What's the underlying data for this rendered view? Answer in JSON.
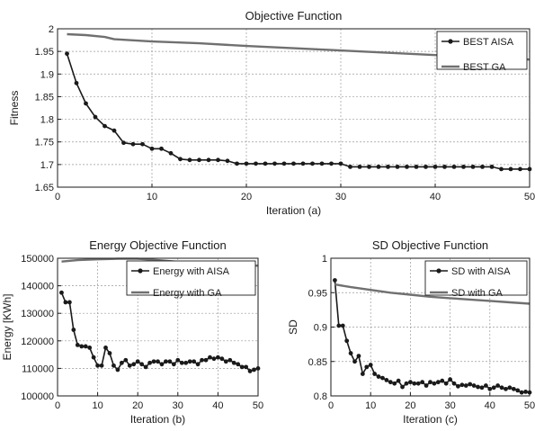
{
  "chart_data": [
    {
      "type": "line",
      "title": "Objective Function",
      "xlabel": "Iteration  (a)",
      "ylabel": "Fitness",
      "xlim": [
        0,
        50
      ],
      "ylim": [
        1.65,
        2.0
      ],
      "xticks": [
        "0",
        "10",
        "20",
        "30",
        "40",
        "50"
      ],
      "yticks": [
        "1.65",
        "1.7",
        "1.75",
        "1.8",
        "1.85",
        "1.9",
        "1.95",
        "2"
      ],
      "grid": true,
      "legend_position": "top-right",
      "series": [
        {
          "name": "BEST AISA",
          "color": "#1a1a1a",
          "markers": true,
          "x": [
            1,
            2,
            3,
            4,
            5,
            6,
            7,
            8,
            9,
            10,
            11,
            12,
            13,
            14,
            15,
            16,
            17,
            18,
            19,
            20,
            21,
            22,
            23,
            24,
            25,
            26,
            27,
            28,
            29,
            30,
            31,
            32,
            33,
            34,
            35,
            36,
            37,
            38,
            39,
            40,
            41,
            42,
            43,
            44,
            45,
            46,
            47,
            48,
            49,
            50
          ],
          "y": [
            1.945,
            1.88,
            1.835,
            1.805,
            1.785,
            1.775,
            1.748,
            1.745,
            1.745,
            1.735,
            1.735,
            1.725,
            1.712,
            1.71,
            1.71,
            1.71,
            1.71,
            1.708,
            1.702,
            1.702,
            1.702,
            1.702,
            1.702,
            1.702,
            1.702,
            1.702,
            1.702,
            1.702,
            1.702,
            1.702,
            1.695,
            1.695,
            1.695,
            1.695,
            1.695,
            1.695,
            1.695,
            1.695,
            1.695,
            1.695,
            1.695,
            1.695,
            1.695,
            1.695,
            1.695,
            1.695,
            1.69,
            1.69,
            1.69,
            1.69
          ]
        },
        {
          "name": "BEST GA",
          "color": "#707070",
          "markers": false,
          "x": [
            1,
            3,
            5,
            6,
            10,
            15,
            20,
            30,
            40,
            45,
            50
          ],
          "y": [
            1.988,
            1.986,
            1.982,
            1.977,
            1.972,
            1.968,
            1.962,
            1.952,
            1.942,
            1.938,
            1.932
          ]
        }
      ]
    },
    {
      "type": "line",
      "title": "Energy Objective Function",
      "xlabel": "Iteration  (b)",
      "ylabel": "Energy [KWh]",
      "xlim": [
        0,
        50
      ],
      "ylim": [
        100000,
        150000
      ],
      "xticks": [
        "0",
        "10",
        "20",
        "30",
        "40",
        "50"
      ],
      "yticks": [
        "100000",
        "110000",
        "120000",
        "130000",
        "140000",
        "150000"
      ],
      "grid": true,
      "legend_position": "top-right",
      "series": [
        {
          "name": "Energy with AISA",
          "color": "#1a1a1a",
          "markers": true,
          "x": [
            1,
            2,
            3,
            4,
            5,
            6,
            7,
            8,
            9,
            10,
            11,
            12,
            13,
            14,
            15,
            16,
            17,
            18,
            19,
            20,
            21,
            22,
            23,
            24,
            25,
            26,
            27,
            28,
            29,
            30,
            31,
            32,
            33,
            34,
            35,
            36,
            37,
            38,
            39,
            40,
            41,
            42,
            43,
            44,
            45,
            46,
            47,
            48,
            49,
            50
          ],
          "y": [
            137500,
            134000,
            134000,
            124000,
            118500,
            118000,
            118000,
            117500,
            114000,
            111000,
            111000,
            117500,
            115500,
            111000,
            109500,
            112000,
            113000,
            111000,
            111500,
            112500,
            111500,
            110500,
            112000,
            112500,
            112500,
            111500,
            112500,
            112500,
            111500,
            113000,
            112000,
            112000,
            112500,
            112500,
            111500,
            113000,
            113000,
            114000,
            113500,
            114000,
            113500,
            112500,
            113000,
            112000,
            111500,
            110500,
            110500,
            109000,
            109500,
            110000
          ]
        },
        {
          "name": "Energy with GA",
          "color": "#707070",
          "markers": false,
          "x": [
            1,
            5,
            10,
            15,
            20,
            25,
            30,
            35,
            40,
            45,
            50
          ],
          "y": [
            148800,
            149300,
            149600,
            149800,
            149800,
            149300,
            148700,
            148300,
            147900,
            147600,
            147300
          ]
        }
      ]
    },
    {
      "type": "line",
      "title": "SD Objective Function",
      "xlabel": "Iteration  (c)",
      "ylabel": "SD",
      "xlim": [
        0,
        50
      ],
      "ylim": [
        0.8,
        1.0
      ],
      "xticks": [
        "0",
        "10",
        "20",
        "30",
        "40",
        "50"
      ],
      "yticks": [
        "0.8",
        "0.85",
        "0.9",
        "0.95",
        "1"
      ],
      "grid": true,
      "legend_position": "top-right",
      "series": [
        {
          "name": "SD with AISA",
          "color": "#1a1a1a",
          "markers": true,
          "x": [
            1,
            2,
            3,
            4,
            5,
            6,
            7,
            8,
            9,
            10,
            11,
            12,
            13,
            14,
            15,
            16,
            17,
            18,
            19,
            20,
            21,
            22,
            23,
            24,
            25,
            26,
            27,
            28,
            29,
            30,
            31,
            32,
            33,
            34,
            35,
            36,
            37,
            38,
            39,
            40,
            41,
            42,
            43,
            44,
            45,
            46,
            47,
            48,
            49,
            50
          ],
          "y": [
            0.968,
            0.902,
            0.902,
            0.88,
            0.862,
            0.85,
            0.858,
            0.832,
            0.842,
            0.845,
            0.832,
            0.828,
            0.826,
            0.823,
            0.82,
            0.818,
            0.822,
            0.813,
            0.818,
            0.82,
            0.818,
            0.818,
            0.82,
            0.815,
            0.82,
            0.818,
            0.82,
            0.822,
            0.818,
            0.824,
            0.818,
            0.814,
            0.816,
            0.815,
            0.817,
            0.815,
            0.813,
            0.812,
            0.815,
            0.81,
            0.812,
            0.815,
            0.812,
            0.81,
            0.812,
            0.81,
            0.808,
            0.805,
            0.806,
            0.805
          ]
        },
        {
          "name": "SD with GA",
          "color": "#707070",
          "markers": false,
          "x": [
            1,
            5,
            10,
            15,
            20,
            25,
            30,
            35,
            40,
            45,
            50
          ],
          "y": [
            0.962,
            0.958,
            0.954,
            0.95,
            0.947,
            0.944,
            0.942,
            0.94,
            0.938,
            0.936,
            0.934
          ]
        }
      ]
    }
  ]
}
